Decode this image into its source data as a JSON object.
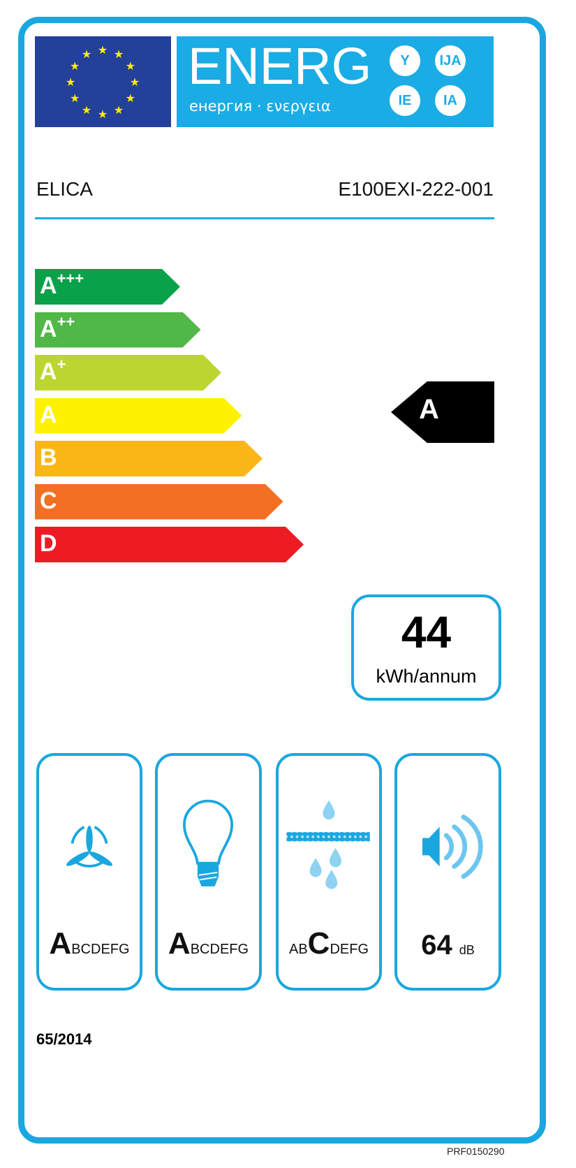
{
  "header": {
    "energy_word": "ENERG",
    "energy_subtitle": "енергия · ενεργεια",
    "suffixes": [
      "Y",
      "IJA",
      "IE",
      "IA"
    ],
    "supplier": "ELICA",
    "model": "E100EXI-222-001"
  },
  "scale": [
    {
      "base": "A",
      "plus": "+++",
      "color": "#0aa14b"
    },
    {
      "base": "A",
      "plus": "++",
      "color": "#51b747"
    },
    {
      "base": "A",
      "plus": "+",
      "color": "#bdd62f"
    },
    {
      "base": "A",
      "plus": "",
      "color": "#fff200"
    },
    {
      "base": "B",
      "plus": "",
      "color": "#fbb718"
    },
    {
      "base": "C",
      "plus": "",
      "color": "#f36f21"
    },
    {
      "base": "D",
      "plus": "",
      "color": "#ed1c24"
    }
  ],
  "rating": "A",
  "consumption": {
    "value": "44",
    "unit": "kWh/annum"
  },
  "indicators": [
    {
      "icon": "fan-icon",
      "letters": [
        "A",
        "B",
        "C",
        "D",
        "E",
        "F",
        "G"
      ],
      "selected": 0
    },
    {
      "icon": "light-bulb-icon",
      "letters": [
        "A",
        "B",
        "C",
        "D",
        "E",
        "F",
        "G"
      ],
      "selected": 0
    },
    {
      "icon": "grease-filter-icon",
      "letters": [
        "A",
        "B",
        "C",
        "D",
        "E",
        "F",
        "G"
      ],
      "selected": 2
    },
    {
      "icon": "speaker-noise-icon",
      "value": "64",
      "unit": "dB"
    }
  ],
  "footer": {
    "regulation": "65/2014",
    "code": "PRF0150290"
  },
  "colors": {
    "frame": "#1aa7e0",
    "eu_blue": "#23409a",
    "eu_star": "#ffed00"
  }
}
